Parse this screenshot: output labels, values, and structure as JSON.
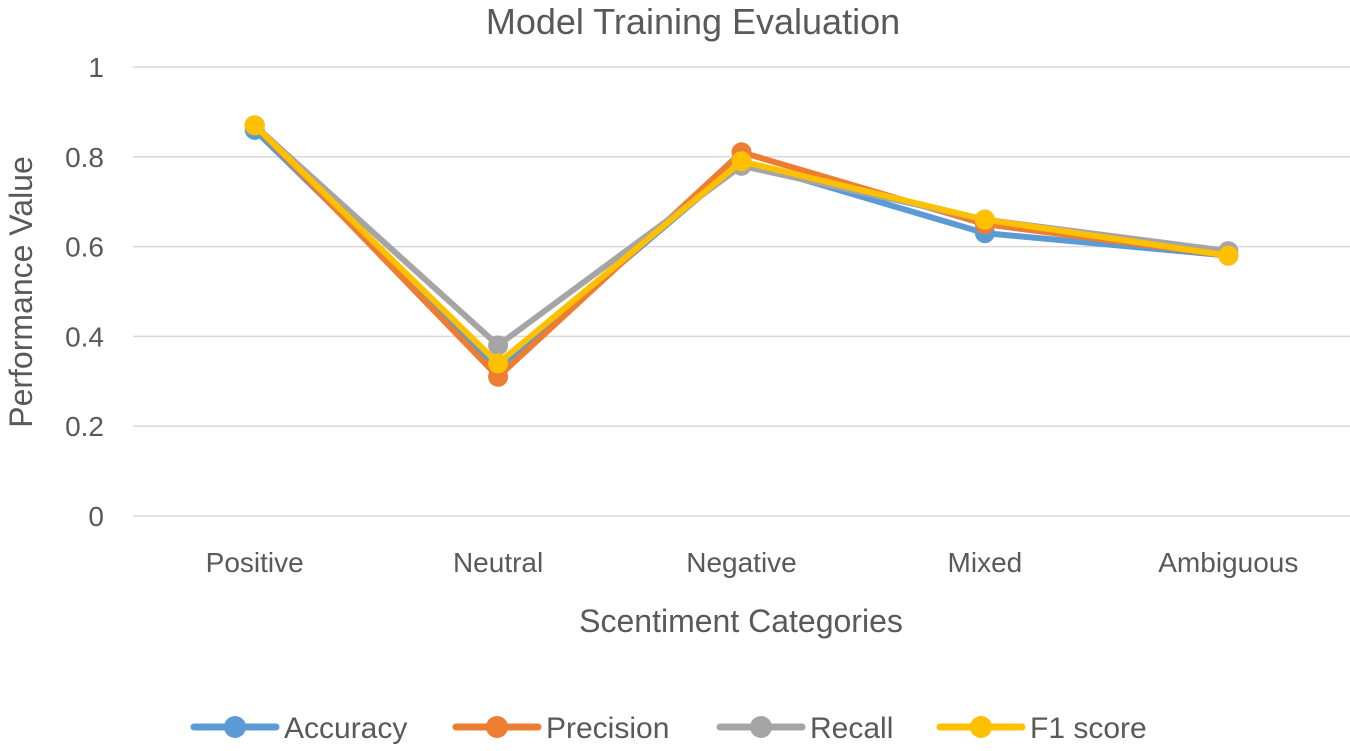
{
  "chart_data": {
    "type": "line",
    "title": "Model Training Evaluation",
    "xlabel": "Scentiment Categories",
    "ylabel": "Performance Value",
    "categories": [
      "Positive",
      "Neutral",
      "Negative",
      "Mixed",
      "Ambiguous"
    ],
    "ylim": [
      0,
      1
    ],
    "yticks": [
      "0",
      "0.2",
      "0.4",
      "0.6",
      "0.8",
      "1"
    ],
    "ytick_values": [
      0,
      0.2,
      0.4,
      0.6,
      0.8,
      1
    ],
    "grid": true,
    "legend_position": "bottom",
    "series": [
      {
        "name": "Accuracy",
        "color": "#5b9bd5",
        "values": [
          0.86,
          0.33,
          0.79,
          0.63,
          0.58
        ]
      },
      {
        "name": "Precision",
        "color": "#ed7d31",
        "values": [
          0.87,
          0.31,
          0.81,
          0.65,
          0.58
        ]
      },
      {
        "name": "Recall",
        "color": "#a5a5a5",
        "values": [
          0.87,
          0.38,
          0.78,
          0.66,
          0.59
        ]
      },
      {
        "name": "F1 score",
        "color": "#ffc000",
        "values": [
          0.87,
          0.34,
          0.79,
          0.66,
          0.58
        ]
      }
    ]
  }
}
